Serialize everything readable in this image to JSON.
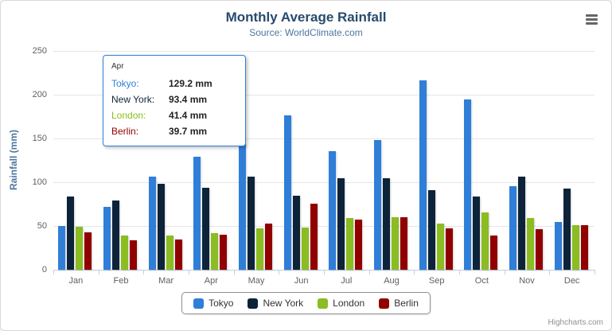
{
  "title": "Monthly Average Rainfall",
  "subtitle": "Source: WorldClimate.com",
  "y_axis_title": "Rainfall (mm)",
  "credits": "Highcharts.com",
  "menu_icon": "hamburger-icon",
  "tooltip": {
    "header": "Apr",
    "border_color": "#2f7ed8",
    "rows": [
      {
        "label": "Tokyo:",
        "value": "129.2 mm",
        "color": "#2f7ed8"
      },
      {
        "label": "New York:",
        "value": "93.4 mm",
        "color": "#0d233a"
      },
      {
        "label": "London:",
        "value": "41.4 mm",
        "color": "#8bbc21"
      },
      {
        "label": "Berlin:",
        "value": "39.7 mm",
        "color": "#910000"
      }
    ]
  },
  "legend": [
    "Tokyo",
    "New York",
    "London",
    "Berlin"
  ],
  "chart_data": {
    "type": "bar",
    "subtype": "grouped-vertical-column",
    "title": "Monthly Average Rainfall",
    "subtitle": "Source: WorldClimate.com",
    "xlabel": "",
    "ylabel": "Rainfall (mm)",
    "ylim": [
      0,
      250
    ],
    "y_ticks": [
      0,
      50,
      100,
      150,
      200,
      250
    ],
    "grid": true,
    "legend_position": "bottom",
    "categories": [
      "Jan",
      "Feb",
      "Mar",
      "Apr",
      "May",
      "Jun",
      "Jul",
      "Aug",
      "Sep",
      "Oct",
      "Nov",
      "Dec"
    ],
    "series": [
      {
        "name": "Tokyo",
        "color": "#2f7ed8",
        "values": [
          49.9,
          71.5,
          106.4,
          129.2,
          144.0,
          176.0,
          135.6,
          148.5,
          216.4,
          194.1,
          95.6,
          54.4
        ]
      },
      {
        "name": "New York",
        "color": "#0d233a",
        "values": [
          83.6,
          78.8,
          98.5,
          93.4,
          106.0,
          84.5,
          105.0,
          104.3,
          91.2,
          83.5,
          106.6,
          92.3
        ]
      },
      {
        "name": "London",
        "color": "#8bbc21",
        "values": [
          48.9,
          38.8,
          39.3,
          41.4,
          47.0,
          48.3,
          59.0,
          59.6,
          52.4,
          65.2,
          59.3,
          51.2
        ]
      },
      {
        "name": "Berlin",
        "color": "#910000",
        "values": [
          42.4,
          33.2,
          34.5,
          39.7,
          52.6,
          75.5,
          57.4,
          60.4,
          47.6,
          39.1,
          46.8,
          51.1
        ]
      }
    ],
    "tooltip_point": {
      "category": "Apr",
      "values": {
        "Tokyo": 129.2,
        "New York": 93.4,
        "London": 41.4,
        "Berlin": 39.7
      }
    }
  }
}
